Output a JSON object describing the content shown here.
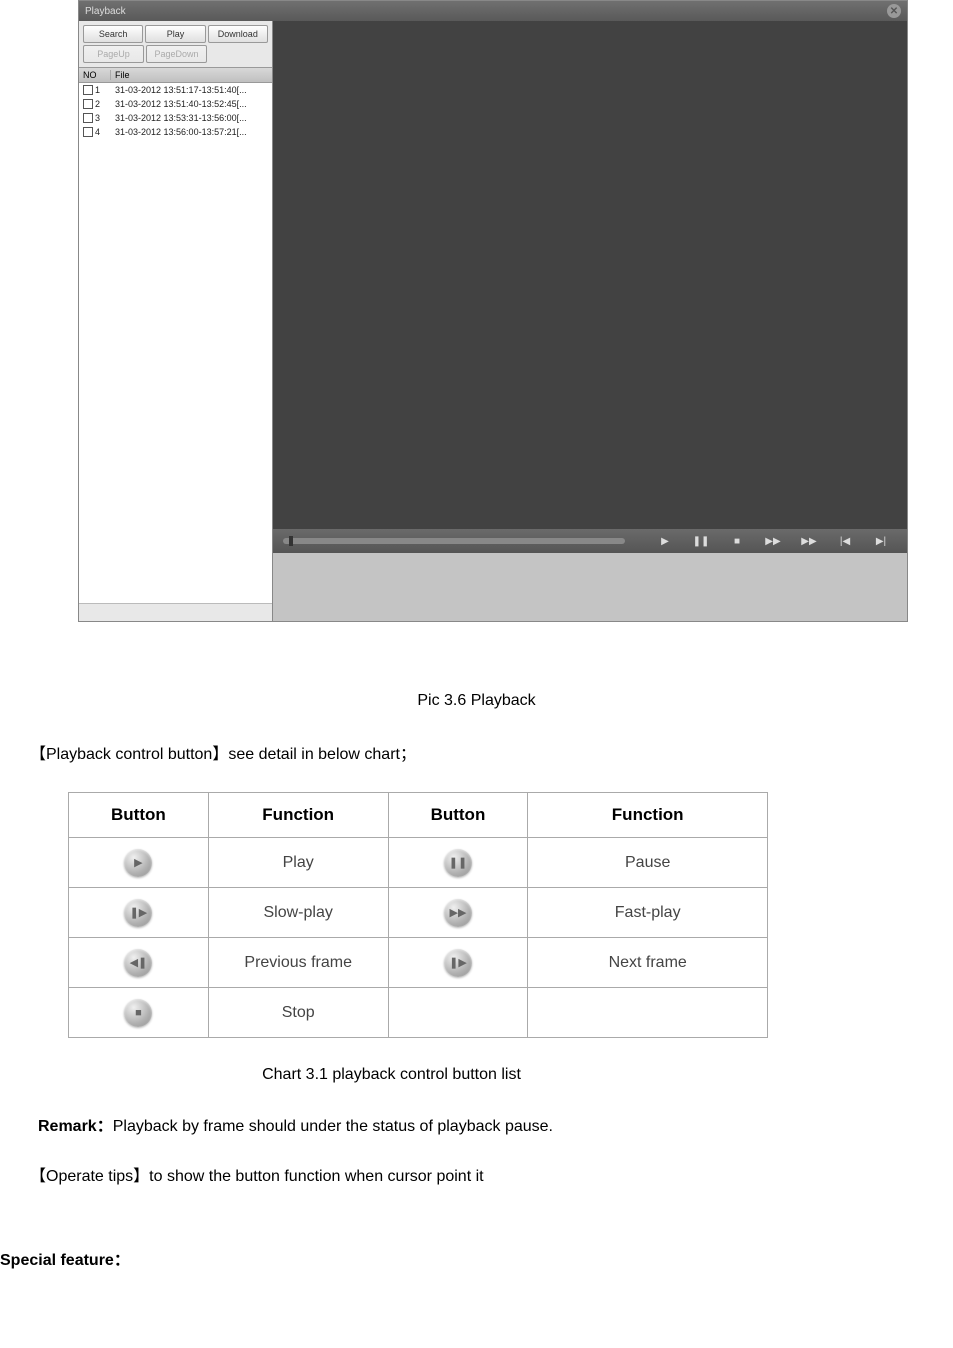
{
  "app": {
    "title": "Playback",
    "buttons": {
      "search": "Search",
      "play": "Play",
      "download": "Download",
      "pageup": "PageUp",
      "pagedown": "PageDown"
    },
    "columns": {
      "no": "NO",
      "file": "File"
    },
    "files": [
      {
        "n": "1",
        "name": "31-03-2012 13:51:17-13:51:40[..."
      },
      {
        "n": "2",
        "name": "31-03-2012 13:51:40-13:52:45[..."
      },
      {
        "n": "3",
        "name": "31-03-2012 13:53:31-13:56:00[..."
      },
      {
        "n": "4",
        "name": "31-03-2012 13:56:00-13:57:21[..."
      }
    ],
    "control_icons": {
      "play": "▶",
      "pause": "❚❚",
      "stop": "■",
      "slow": "▶▶",
      "fast": "▶▶",
      "prev": "|◀",
      "next": "▶|"
    }
  },
  "doc": {
    "caption": "Pic 3.6 Playback",
    "para1": "【Playback control button】see detail in below chart；",
    "table": {
      "headers": {
        "button": "Button",
        "function": "Function"
      },
      "rows": [
        {
          "f1": "Play",
          "f2": "Pause",
          "i1": "▶",
          "i2": "❚❚"
        },
        {
          "f1": "Slow-play",
          "f2": "Fast-play",
          "i1": "❚▶",
          "i2": "▶▶"
        },
        {
          "f1": "Previous frame",
          "f2": "Next frame",
          "i1": "◀❚",
          "i2": "❚▶"
        },
        {
          "f1": "Stop",
          "f2": "",
          "i1": "■",
          "i2": ""
        }
      ]
    },
    "chart_caption": "Chart 3.1 playback control button list",
    "remark_label": "Remark：",
    "remark_text": "Playback by frame should under the status of playback pause.",
    "tips": "【Operate tips】to show the button function when cursor point it",
    "special": "Special feature："
  },
  "colors": {
    "window_bg": "#595959",
    "video_bg": "#424242",
    "sidebar_bg": "#ffffff",
    "bottom_gray": "#c4c4c4",
    "border": "#aaaaaa"
  }
}
